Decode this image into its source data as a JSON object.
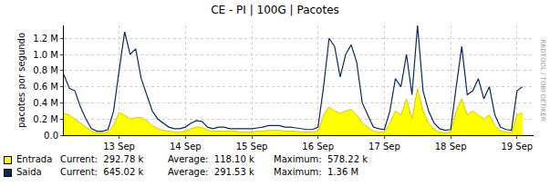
{
  "chart_data": {
    "type": "line",
    "title": "CE - PI | 100G | Pacotes",
    "y_label": "pacotes por segundo",
    "side_text": "RRDTOOL / TOBI OETIKER",
    "categories": [
      null,
      null,
      null,
      null,
      null,
      null,
      null,
      null,
      null,
      null,
      "13 Sep",
      null,
      null,
      null,
      null,
      null,
      null,
      null,
      null,
      null,
      null,
      null,
      "14 Sep",
      null,
      null,
      null,
      null,
      null,
      null,
      null,
      null,
      null,
      null,
      null,
      "15 Sep",
      null,
      null,
      null,
      null,
      null,
      null,
      null,
      null,
      null,
      null,
      null,
      "16 Sep",
      null,
      null,
      null,
      null,
      null,
      null,
      null,
      null,
      null,
      null,
      null,
      "17 Sep",
      null,
      null,
      null,
      null,
      null,
      null,
      null,
      null,
      null,
      null,
      null,
      "18 Sep",
      null,
      null,
      null,
      null,
      null,
      null,
      null,
      null,
      null,
      null,
      null,
      "19 Sep",
      null,
      null,
      null
    ],
    "series": [
      {
        "name": "Entrada",
        "type": "area",
        "color": "#ffff00",
        "stats": [
          {
            "label": "Current:",
            "text": "292.78 k"
          },
          {
            "label": "Average:",
            "text": "118.10 k"
          },
          {
            "label": "Maximum:",
            "text": "578.22 k"
          }
        ],
        "values": [
          270000,
          250000,
          200000,
          150000,
          100000,
          50000,
          30000,
          30000,
          40000,
          120000,
          280000,
          250000,
          200000,
          220000,
          220000,
          180000,
          120000,
          80000,
          60000,
          50000,
          40000,
          40000,
          50000,
          80000,
          100000,
          100000,
          60000,
          50000,
          50000,
          50000,
          50000,
          50000,
          40000,
          40000,
          40000,
          50000,
          50000,
          60000,
          60000,
          60000,
          50000,
          50000,
          50000,
          40000,
          40000,
          40000,
          50000,
          250000,
          350000,
          300000,
          270000,
          300000,
          320000,
          250000,
          150000,
          100000,
          50000,
          40000,
          40000,
          150000,
          300000,
          250000,
          450000,
          200000,
          578000,
          300000,
          150000,
          70000,
          40000,
          30000,
          40000,
          300000,
          450000,
          250000,
          300000,
          250000,
          200000,
          250000,
          120000,
          50000,
          40000,
          30000,
          250000,
          280000,
          null,
          null
        ]
      },
      {
        "name": "Saida",
        "type": "line",
        "color": "#0a2a5a",
        "stats": [
          {
            "label": "Current:",
            "text": "645.02 k"
          },
          {
            "label": "Average:",
            "text": "291.53 k"
          },
          {
            "label": "Maximum:",
            "text": "1.36 M"
          }
        ],
        "values": [
          750000,
          580000,
          550000,
          350000,
          200000,
          80000,
          50000,
          50000,
          70000,
          300000,
          800000,
          1280000,
          1000000,
          1070000,
          700000,
          500000,
          300000,
          200000,
          150000,
          100000,
          80000,
          80000,
          100000,
          150000,
          180000,
          170000,
          100000,
          80000,
          100000,
          100000,
          80000,
          80000,
          80000,
          80000,
          80000,
          90000,
          100000,
          120000,
          120000,
          120000,
          100000,
          100000,
          90000,
          80000,
          70000,
          70000,
          100000,
          600000,
          1200000,
          1100000,
          720000,
          1000000,
          1120000,
          900000,
          400000,
          250000,
          100000,
          80000,
          70000,
          300000,
          700000,
          600000,
          1000000,
          500000,
          1360000,
          550000,
          300000,
          150000,
          80000,
          60000,
          70000,
          600000,
          1100000,
          500000,
          550000,
          700000,
          450000,
          600000,
          250000,
          100000,
          70000,
          60000,
          550000,
          600000,
          null,
          null
        ]
      }
    ],
    "ylim": [
      0,
      1360000
    ],
    "yticks": [
      {
        "value": 0,
        "label": "0.0"
      },
      {
        "value": 200000,
        "label": "0.2 M"
      },
      {
        "value": 400000,
        "label": "0.4 M"
      },
      {
        "value": 600000,
        "label": "0.6 M"
      },
      {
        "value": 800000,
        "label": "0.8 M"
      },
      {
        "value": 1000000,
        "label": "1.0 M"
      },
      {
        "value": 1200000,
        "label": "1.2 M"
      }
    ],
    "grid": true
  }
}
